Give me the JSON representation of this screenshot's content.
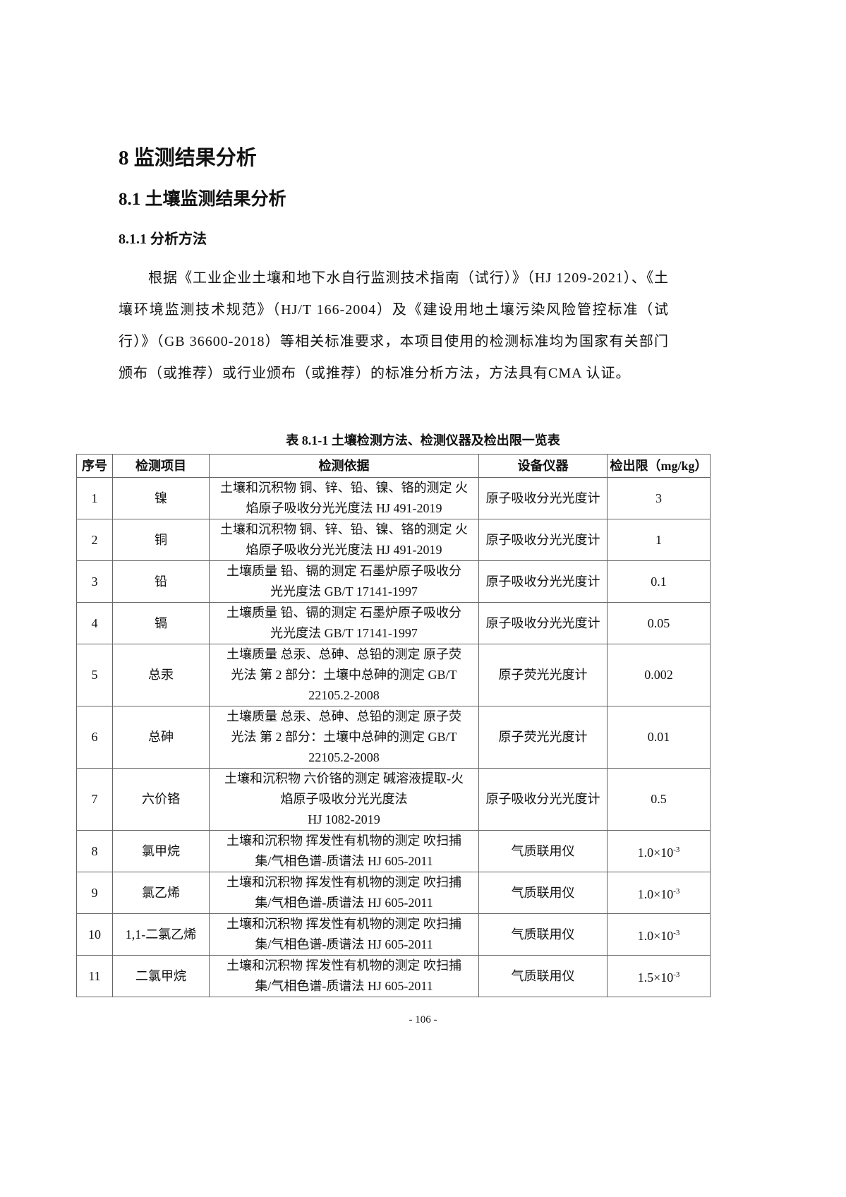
{
  "headings": {
    "h1": "8 监测结果分析",
    "h2": "8.1 土壤监测结果分析",
    "h3": "8.1.1 分析方法"
  },
  "paragraph": "根据《工业企业土壤和地下水自行监测技术指南（试行）》（HJ 1209-2021）、《土壤环境监测技术规范》（HJ/T 166-2004）及《建设用地土壤污染风险管控标准（试行）》（GB 36600-2018）等相关标准要求，本项目使用的检测标准均为国家有关部门颁布（或推荐）或行业颁布（或推荐）的标准分析方法，方法具有CMA 认证。",
  "table": {
    "caption": "表 8.1-1 土壤检测方法、检测仪器及检出限一览表",
    "headers": [
      "序号",
      "检测项目",
      "检测依据",
      "设备仪器",
      "检出限（mg/kg）"
    ],
    "rows": [
      {
        "no": "1",
        "item": "镍",
        "method": [
          "土壤和沉积物 铜、锌、铅、镍、铬的测定 火",
          "焰原子吸收分光光度法 HJ 491-2019"
        ],
        "instrument": "原子吸收分光光度计",
        "limit": "3",
        "exp": ""
      },
      {
        "no": "2",
        "item": "铜",
        "method": [
          "土壤和沉积物 铜、锌、铅、镍、铬的测定 火",
          "焰原子吸收分光光度法 HJ 491-2019"
        ],
        "instrument": "原子吸收分光光度计",
        "limit": "1",
        "exp": ""
      },
      {
        "no": "3",
        "item": "铅",
        "method": [
          "土壤质量 铅、镉的测定 石墨炉原子吸收分",
          "光光度法 GB/T 17141-1997"
        ],
        "instrument": "原子吸收分光光度计",
        "limit": "0.1",
        "exp": ""
      },
      {
        "no": "4",
        "item": "镉",
        "method": [
          "土壤质量 铅、镉的测定 石墨炉原子吸收分",
          "光光度法 GB/T 17141-1997"
        ],
        "instrument": "原子吸收分光光度计",
        "limit": "0.05",
        "exp": ""
      },
      {
        "no": "5",
        "item": "总汞",
        "method": [
          "土壤质量 总汞、总砷、总铅的测定 原子荧",
          "光法 第 2 部分：土壤中总砷的测定 GB/T",
          "22105.2-2008"
        ],
        "instrument": "原子荧光光度计",
        "limit": "0.002",
        "exp": ""
      },
      {
        "no": "6",
        "item": "总砷",
        "method": [
          "土壤质量 总汞、总砷、总铅的测定 原子荧",
          "光法 第 2 部分：土壤中总砷的测定 GB/T",
          "22105.2-2008"
        ],
        "instrument": "原子荧光光度计",
        "limit": "0.01",
        "exp": ""
      },
      {
        "no": "7",
        "item": "六价铬",
        "method": [
          "土壤和沉积物 六价铬的测定 碱溶液提取-火",
          "焰原子吸收分光光度法",
          "HJ 1082-2019"
        ],
        "instrument": "原子吸收分光光度计",
        "limit": "0.5",
        "exp": ""
      },
      {
        "no": "8",
        "item": "氯甲烷",
        "method": [
          "土壤和沉积物 挥发性有机物的测定 吹扫捕",
          "集/气相色谱-质谱法 HJ 605-2011"
        ],
        "instrument": "气质联用仪",
        "limit": "1.0×10",
        "exp": "-3"
      },
      {
        "no": "9",
        "item": "氯乙烯",
        "method": [
          "土壤和沉积物 挥发性有机物的测定 吹扫捕",
          "集/气相色谱-质谱法 HJ 605-2011"
        ],
        "instrument": "气质联用仪",
        "limit": "1.0×10",
        "exp": "-3"
      },
      {
        "no": "10",
        "item": "1,1-二氯乙烯",
        "method": [
          "土壤和沉积物 挥发性有机物的测定 吹扫捕",
          "集/气相色谱-质谱法 HJ 605-2011"
        ],
        "instrument": "气质联用仪",
        "limit": "1.0×10",
        "exp": "-3"
      },
      {
        "no": "11",
        "item": "二氯甲烷",
        "method": [
          "土壤和沉积物 挥发性有机物的测定 吹扫捕",
          "集/气相色谱-质谱法 HJ 605-2011"
        ],
        "instrument": "气质联用仪",
        "limit": "1.5×10",
        "exp": "-3"
      }
    ]
  },
  "footer": {
    "page_number": "- 106 -"
  }
}
